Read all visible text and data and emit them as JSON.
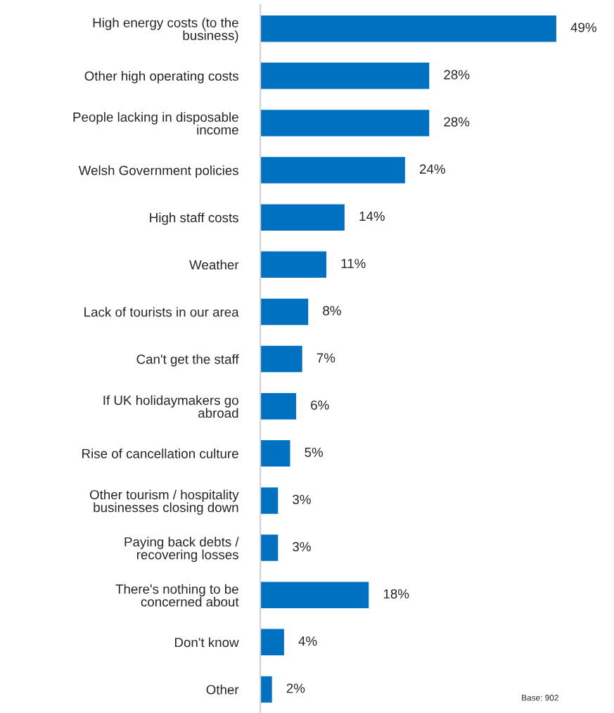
{
  "chart_data": {
    "type": "bar",
    "orientation": "horizontal",
    "categories": [
      "High energy costs (to the\nbusiness)",
      "Other high operating costs",
      "People lacking in disposable\nincome",
      "Welsh Government policies",
      "High staff costs",
      "Weather",
      "Lack of tourists in our area",
      "Can't get the staff",
      "If UK holidaymakers go\nabroad",
      "Rise of cancellation culture",
      "Other tourism / hospitality\nbusinesses closing down",
      "Paying back debts /\nrecovering losses",
      "There's nothing to be\nconcerned about",
      "Don't know",
      "Other"
    ],
    "values": [
      49,
      28,
      28,
      24,
      14,
      11,
      8,
      7,
      6,
      5,
      3,
      3,
      18,
      4,
      2
    ],
    "value_labels": [
      "49%",
      "28%",
      "28%",
      "24%",
      "14%",
      "11%",
      "8%",
      "7%",
      "6%",
      "5%",
      "3%",
      "3%",
      "18%",
      "4%",
      "2%"
    ],
    "color": "#0070c0",
    "annotations": [
      "Base: 902"
    ],
    "grid": false,
    "legend": false
  }
}
